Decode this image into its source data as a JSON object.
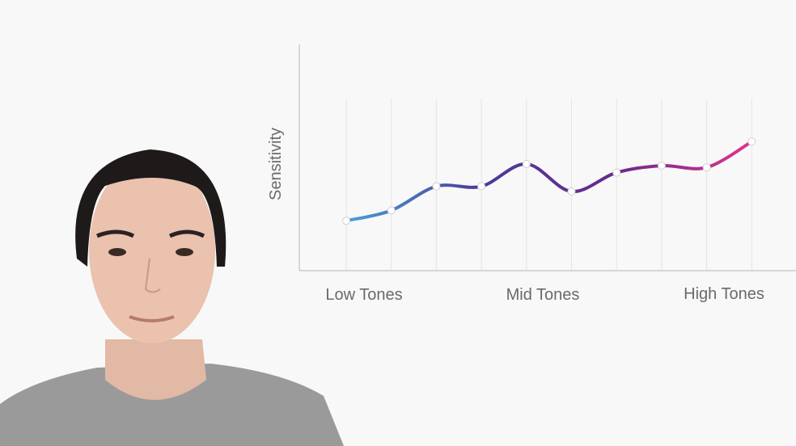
{
  "chart_data": {
    "type": "line",
    "ylabel": "Sensitivity",
    "xlabel": "",
    "x_tick_labels": [
      "Low Tones",
      "Mid Tones",
      "High Tones"
    ],
    "x": [
      1,
      2,
      3,
      4,
      5,
      6,
      7,
      8,
      9,
      10
    ],
    "values": [
      29,
      35,
      49,
      49,
      62,
      46,
      57,
      61,
      60,
      75
    ],
    "ylim": [
      0,
      100
    ],
    "grid": "vertical",
    "smooth": true,
    "gradient_colors": [
      "#4a9fd8",
      "#4b3a9a",
      "#6a2a8c",
      "#e0338f"
    ],
    "marker_color": "#ffffff"
  }
}
